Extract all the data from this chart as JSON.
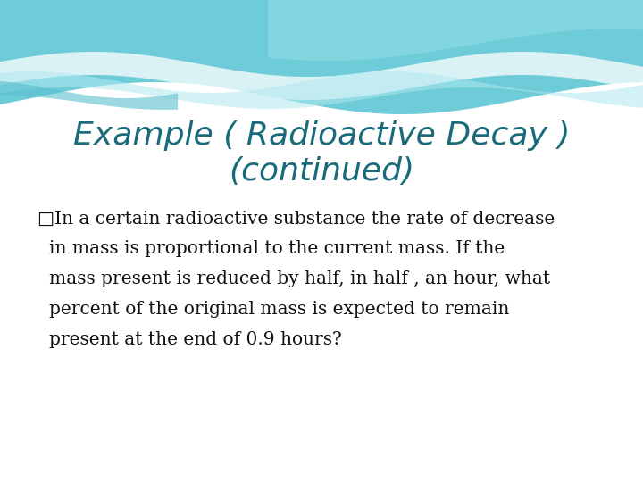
{
  "title_line1": "Example ( Radioactive Decay )",
  "title_line2": "(continued)",
  "title_color": "#1a6b7a",
  "body_lines": [
    "□In a certain radioactive substance the rate of decrease",
    "in mass is proportional to the current mass. If the",
    "mass present is reduced by half, in half , an hour, what",
    "percent of the original mass is expected to remain",
    "present at the end of 0.9 hours?"
  ],
  "body_color": "#111111",
  "bg_color": "#ffffff",
  "title_fontsize": 26,
  "body_fontsize": 14.5
}
